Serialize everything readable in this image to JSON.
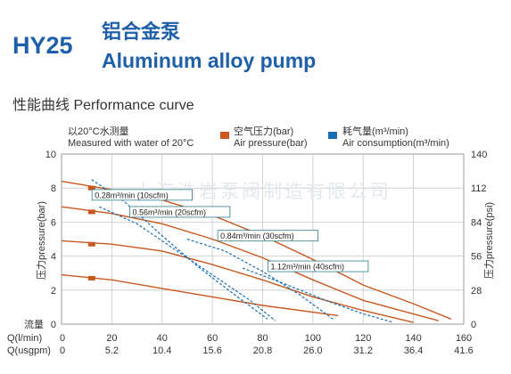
{
  "header": {
    "model": "HY25",
    "title_cn": "铝合金泵",
    "title_en": "Aluminum alloy pump",
    "section": "性能曲线  Performance curve"
  },
  "legend": {
    "water_cn": "以20°C水测量",
    "water_en": "Measured with water of 20°C",
    "air_pressure_cn": "空气压力(bar)",
    "air_pressure_en": "Air pressure(bar)",
    "air_consumption_cn": "耗气量(m³/min)",
    "air_consumption_en": "Air consumption(m³/min)"
  },
  "watermark": "上海浩岩泵阀制造有限公司",
  "colors": {
    "air_pressure": "#c8581e",
    "air_consumption": "#1a6fb0",
    "title": "#1d5fa8",
    "grid": "#c8c8c8"
  },
  "chart_data": {
    "type": "line",
    "xlabel_flow": "流量",
    "x_rows": [
      {
        "label": "Q(l/min)",
        "ticks": [
          "0",
          "20",
          "40",
          "60",
          "80",
          "100",
          "120",
          "140",
          "160"
        ]
      },
      {
        "label": "Q(usgpm)",
        "ticks": [
          "0",
          "5.2",
          "10.4",
          "15.6",
          "20.8",
          "26.0",
          "31.2",
          "36.4",
          "41.6"
        ]
      }
    ],
    "xlim": [
      0,
      160
    ],
    "ylabel_left": "压力pressure(bar)",
    "ylim_left": [
      0,
      10
    ],
    "yticks_left": [
      "0",
      "2",
      "4",
      "6",
      "8",
      "10"
    ],
    "ylabel_right": "压力pressure(psi)",
    "ylim_right": [
      0,
      140
    ],
    "yticks_right": [
      "0",
      "28",
      "56",
      "84",
      "112",
      "140"
    ],
    "pressure_series": [
      {
        "start_bar": 8,
        "points": [
          [
            0,
            8.4
          ],
          [
            20,
            7.9
          ],
          [
            40,
            7.3
          ],
          [
            60,
            6.4
          ],
          [
            80,
            5.2
          ],
          [
            100,
            3.8
          ],
          [
            120,
            2.3
          ],
          [
            140,
            1.2
          ],
          [
            155,
            0.3
          ]
        ]
      },
      {
        "start_bar": 6.6,
        "points": [
          [
            0,
            6.9
          ],
          [
            20,
            6.5
          ],
          [
            40,
            5.9
          ],
          [
            60,
            5.0
          ],
          [
            80,
            3.9
          ],
          [
            100,
            2.6
          ],
          [
            120,
            1.4
          ],
          [
            150,
            0.2
          ]
        ]
      },
      {
        "start_bar": 4.7,
        "points": [
          [
            0,
            4.9
          ],
          [
            20,
            4.7
          ],
          [
            40,
            4.3
          ],
          [
            60,
            3.5
          ],
          [
            80,
            2.6
          ],
          [
            100,
            1.6
          ],
          [
            120,
            0.8
          ],
          [
            140,
            0.1
          ]
        ]
      },
      {
        "start_bar": 2.7,
        "points": [
          [
            0,
            2.9
          ],
          [
            20,
            2.6
          ],
          [
            40,
            2.1
          ],
          [
            60,
            1.6
          ],
          [
            80,
            1.1
          ],
          [
            100,
            0.7
          ],
          [
            110,
            0.5
          ]
        ]
      }
    ],
    "consumption_series": [
      {
        "label": "0.28m³/min (10scfm)",
        "points": [
          [
            12,
            8.5
          ],
          [
            25,
            7.2
          ],
          [
            40,
            5.2
          ],
          [
            55,
            3.3
          ],
          [
            70,
            1.6
          ],
          [
            82,
            0.3
          ]
        ]
      },
      {
        "label": "0.56m³/min (20scfm)",
        "points": [
          [
            15,
            6.9
          ],
          [
            30,
            5.9
          ],
          [
            45,
            4.4
          ],
          [
            60,
            2.9
          ],
          [
            75,
            1.4
          ],
          [
            85,
            0.2
          ]
        ]
      },
      {
        "label": "0.84m³/min (30scfm)",
        "points": [
          [
            50,
            5.0
          ],
          [
            65,
            4.3
          ],
          [
            80,
            3.1
          ],
          [
            95,
            1.7
          ],
          [
            108,
            0.3
          ]
        ]
      },
      {
        "label": "1.12m³/min (40scfm)",
        "points": [
          [
            72,
            3.3
          ],
          [
            90,
            2.3
          ],
          [
            105,
            1.4
          ],
          [
            120,
            0.6
          ],
          [
            132,
            0.1
          ]
        ]
      }
    ],
    "consumption_label_anchors": [
      [
        10,
        7.6
      ],
      [
        25,
        6.6
      ],
      [
        60,
        5.2
      ],
      [
        80,
        3.4
      ]
    ],
    "consumption_label_start": [
      [
        10,
        7.5
      ],
      [
        25,
        6.5
      ],
      [
        60,
        4.5
      ],
      [
        80,
        3.2
      ]
    ]
  }
}
